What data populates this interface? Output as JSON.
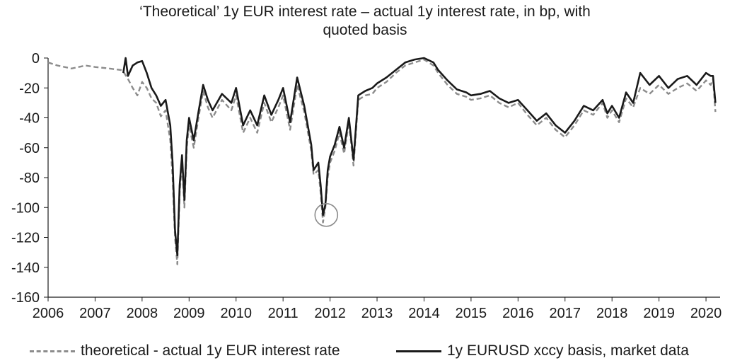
{
  "chart_data": {
    "type": "line",
    "title_lines": [
      "‘Theoretical’ 1y EUR interest rate – actual 1y interest rate, in bp, with",
      "quoted basis"
    ],
    "xlabel": "",
    "ylabel": "",
    "xlim": [
      2006,
      2020.3
    ],
    "ylim": [
      -160,
      0
    ],
    "x_ticks": [
      2006,
      2007,
      2008,
      2009,
      2010,
      2011,
      2012,
      2013,
      2014,
      2015,
      2016,
      2017,
      2018,
      2019,
      2020
    ],
    "x_tick_labels": [
      "2006",
      "2007",
      "2008",
      "2009",
      "2010",
      "2011",
      "2012",
      "2013",
      "2014",
      "2015",
      "2016",
      "2017",
      "2018",
      "2019",
      "2020"
    ],
    "y_ticks": [
      0,
      -20,
      -40,
      -60,
      -80,
      -100,
      -120,
      -140,
      -160
    ],
    "y_tick_labels": [
      "0",
      "-20",
      "-40",
      "-60",
      "-80",
      "-100",
      "-120",
      "-140",
      "-160"
    ],
    "grid": false,
    "legend_position": "bottom",
    "series": [
      {
        "name": "theoretical - actual 1y EUR interest rate",
        "style": "dashed",
        "color": "#8c8c8c",
        "x": [
          2006.0,
          2006.2,
          2006.5,
          2006.8,
          2007.0,
          2007.3,
          2007.55,
          2007.62,
          2007.7,
          2007.8,
          2007.9,
          2008.0,
          2008.1,
          2008.2,
          2008.3,
          2008.4,
          2008.5,
          2008.6,
          2008.65,
          2008.7,
          2008.75,
          2008.8,
          2008.85,
          2008.9,
          2008.95,
          2009.0,
          2009.1,
          2009.2,
          2009.3,
          2009.4,
          2009.5,
          2009.7,
          2009.9,
          2010.0,
          2010.15,
          2010.3,
          2010.45,
          2010.6,
          2010.75,
          2010.9,
          2011.0,
          2011.15,
          2011.3,
          2011.45,
          2011.6,
          2011.65,
          2011.75,
          2011.8,
          2011.85,
          2011.9,
          2011.95,
          2012.0,
          2012.1,
          2012.2,
          2012.3,
          2012.4,
          2012.5,
          2012.6,
          2012.75,
          2012.9,
          2013.0,
          2013.2,
          2013.4,
          2013.6,
          2013.8,
          2014.0,
          2014.2,
          2014.3,
          2014.5,
          2014.7,
          2014.9,
          2015.0,
          2015.2,
          2015.4,
          2015.6,
          2015.8,
          2016.0,
          2016.2,
          2016.4,
          2016.6,
          2016.8,
          2017.0,
          2017.2,
          2017.4,
          2017.6,
          2017.8,
          2017.9,
          2018.0,
          2018.15,
          2018.3,
          2018.45,
          2018.6,
          2018.8,
          2019.0,
          2019.2,
          2019.4,
          2019.6,
          2019.8,
          2020.0,
          2020.1,
          2020.15,
          2020.2
        ],
        "y": [
          -3,
          -5,
          -7,
          -5,
          -6,
          -7,
          -8,
          -10,
          -14,
          -20,
          -25,
          -16,
          -20,
          -27,
          -30,
          -39,
          -35,
          -55,
          -80,
          -120,
          -138,
          -90,
          -70,
          -100,
          -60,
          -45,
          -60,
          -40,
          -22,
          -33,
          -40,
          -28,
          -35,
          -25,
          -50,
          -40,
          -50,
          -30,
          -43,
          -33,
          -25,
          -48,
          -18,
          -36,
          -62,
          -78,
          -75,
          -90,
          -110,
          -100,
          -80,
          -70,
          -62,
          -50,
          -64,
          -43,
          -72,
          -28,
          -25,
          -24,
          -20,
          -16,
          -10,
          -5,
          -3,
          -1,
          -5,
          -10,
          -18,
          -24,
          -26,
          -28,
          -27,
          -25,
          -30,
          -33,
          -30,
          -38,
          -45,
          -40,
          -48,
          -53,
          -45,
          -35,
          -38,
          -30,
          -40,
          -35,
          -43,
          -27,
          -33,
          -20,
          -24,
          -18,
          -24,
          -20,
          -17,
          -22,
          -15,
          -18,
          -14,
          -36
        ]
      },
      {
        "name": "1y EURUSD xccy basis, market data",
        "style": "solid",
        "color": "#1a1a1a",
        "x": [
          2007.6,
          2007.65,
          2007.7,
          2007.8,
          2007.9,
          2008.0,
          2008.1,
          2008.2,
          2008.3,
          2008.4,
          2008.5,
          2008.6,
          2008.65,
          2008.7,
          2008.75,
          2008.8,
          2008.85,
          2008.9,
          2008.95,
          2009.0,
          2009.1,
          2009.2,
          2009.3,
          2009.4,
          2009.5,
          2009.7,
          2009.9,
          2010.0,
          2010.15,
          2010.3,
          2010.45,
          2010.6,
          2010.75,
          2010.9,
          2011.0,
          2011.15,
          2011.3,
          2011.45,
          2011.6,
          2011.65,
          2011.75,
          2011.8,
          2011.85,
          2011.9,
          2011.95,
          2012.0,
          2012.1,
          2012.2,
          2012.3,
          2012.4,
          2012.5,
          2012.6,
          2012.75,
          2012.9,
          2013.0,
          2013.2,
          2013.4,
          2013.6,
          2013.8,
          2014.0,
          2014.2,
          2014.3,
          2014.5,
          2014.7,
          2014.9,
          2015.0,
          2015.2,
          2015.4,
          2015.6,
          2015.8,
          2016.0,
          2016.2,
          2016.4,
          2016.6,
          2016.8,
          2017.0,
          2017.2,
          2017.4,
          2017.6,
          2017.8,
          2017.9,
          2018.0,
          2018.15,
          2018.3,
          2018.45,
          2018.6,
          2018.8,
          2019.0,
          2019.2,
          2019.4,
          2019.6,
          2019.8,
          2020.0,
          2020.1,
          2020.15,
          2020.2
        ],
        "y": [
          -10,
          0,
          -12,
          -5,
          -3,
          -2,
          -10,
          -20,
          -25,
          -32,
          -28,
          -45,
          -70,
          -115,
          -132,
          -85,
          -65,
          -95,
          -55,
          -40,
          -55,
          -36,
          -18,
          -28,
          -35,
          -24,
          -30,
          -20,
          -45,
          -35,
          -45,
          -25,
          -38,
          -28,
          -20,
          -43,
          -13,
          -32,
          -58,
          -75,
          -70,
          -85,
          -105,
          -98,
          -75,
          -66,
          -58,
          -46,
          -60,
          -40,
          -68,
          -25,
          -22,
          -20,
          -17,
          -13,
          -8,
          -3,
          -1,
          0,
          -3,
          -8,
          -15,
          -21,
          -23,
          -25,
          -24,
          -22,
          -27,
          -30,
          -28,
          -35,
          -42,
          -37,
          -45,
          -50,
          -42,
          -32,
          -35,
          -28,
          -37,
          -32,
          -40,
          -23,
          -30,
          -10,
          -18,
          -12,
          -20,
          -14,
          -12,
          -18,
          -10,
          -12,
          -12,
          -30
        ]
      }
    ],
    "annotations": [
      {
        "type": "circle",
        "x": 2011.92,
        "y": -105
      }
    ]
  }
}
